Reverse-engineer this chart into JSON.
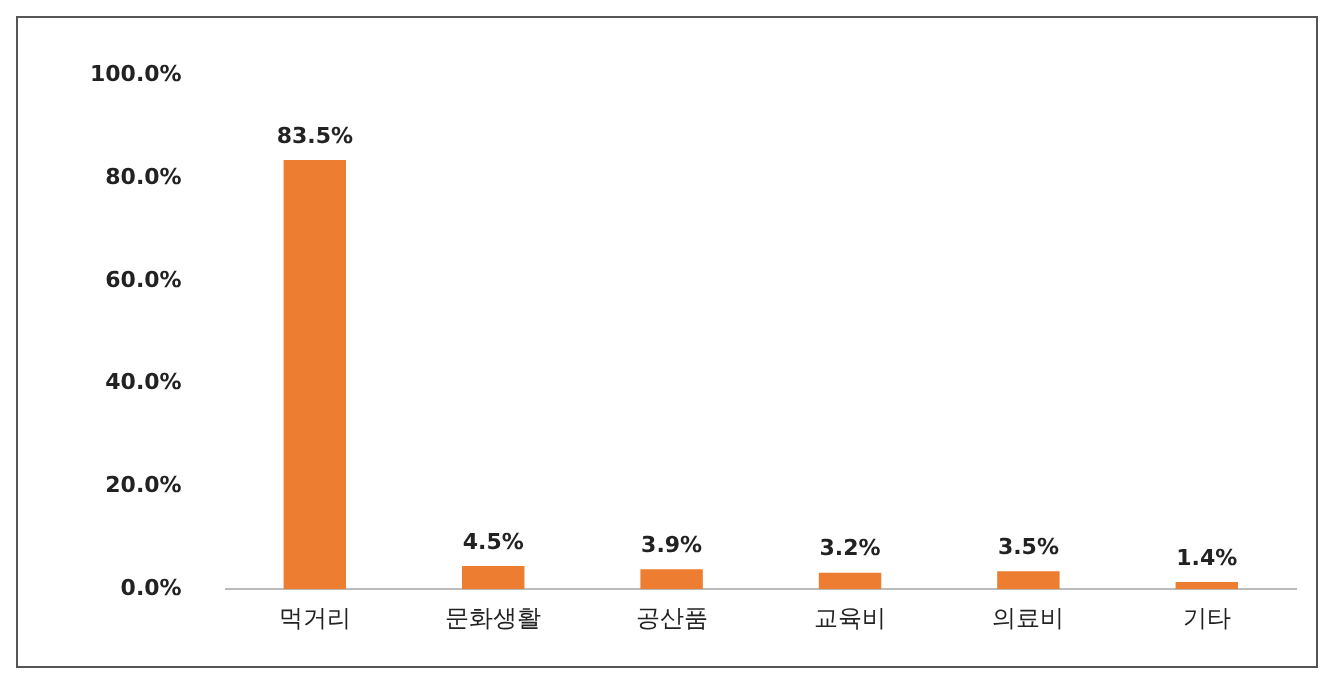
{
  "chart_data": {
    "type": "bar",
    "categories": [
      "먹거리",
      "문화생활",
      "공산품",
      "교육비",
      "의료비",
      "기타"
    ],
    "values": [
      83.5,
      4.5,
      3.9,
      3.2,
      3.5,
      1.4
    ],
    "value_labels": [
      "83.5%",
      "4.5%",
      "3.9%",
      "3.2%",
      "3.5%",
      "1.4%"
    ],
    "color": "#ed7d31",
    "ylim": [
      0,
      100
    ],
    "yticks": [
      {
        "value": 0,
        "label": "0.0%"
      },
      {
        "value": 20,
        "label": "20.0%"
      },
      {
        "value": 40,
        "label": "40.0%"
      },
      {
        "value": 60,
        "label": "60.0%"
      },
      {
        "value": 80,
        "label": "80.0%"
      },
      {
        "value": 100,
        "label": "100.0%"
      }
    ],
    "grid": false,
    "legend": false
  }
}
